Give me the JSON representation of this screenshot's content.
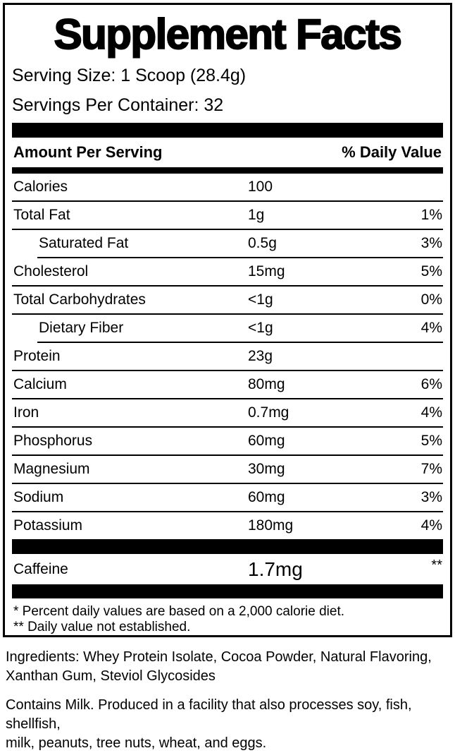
{
  "colors": {
    "ink": "#000000",
    "paper": "#ffffff"
  },
  "label": {
    "title": "Supplement Facts",
    "serving_size": "Serving Size: 1 Scoop (28.4g)",
    "servings_per_container": "Servings Per Container: 32",
    "header": {
      "left": "Amount Per Serving",
      "right": "% Daily Value"
    },
    "rows": [
      {
        "name": "Calories",
        "amount": "100",
        "dv": "",
        "indent": false,
        "sep": "full"
      },
      {
        "name": "Total Fat",
        "amount": "1g",
        "dv": "1%",
        "indent": false,
        "sep": "full"
      },
      {
        "name": "Saturated Fat",
        "amount": "0.5g",
        "dv": "3%",
        "indent": true,
        "sep": "indent"
      },
      {
        "name": "Cholesterol",
        "amount": "15mg",
        "dv": "5%",
        "indent": false,
        "sep": "full"
      },
      {
        "name": "Total Carbohydrates",
        "amount": "<1g",
        "dv": "0%",
        "indent": false,
        "sep": "full"
      },
      {
        "name": "Dietary Fiber",
        "amount": "<1g",
        "dv": "4%",
        "indent": true,
        "sep": "indent"
      },
      {
        "name": "Protein",
        "amount": "23g",
        "dv": "",
        "indent": false,
        "sep": "full"
      },
      {
        "name": "Calcium",
        "amount": "80mg",
        "dv": "6%",
        "indent": false,
        "sep": "full"
      },
      {
        "name": "Iron",
        "amount": "0.7mg",
        "dv": "4%",
        "indent": false,
        "sep": "full"
      },
      {
        "name": "Phosphorus",
        "amount": "60mg",
        "dv": "5%",
        "indent": false,
        "sep": "full"
      },
      {
        "name": "Magnesium",
        "amount": "30mg",
        "dv": "7%",
        "indent": false,
        "sep": "full"
      },
      {
        "name": "Sodium",
        "amount": "60mg",
        "dv": "3%",
        "indent": false,
        "sep": "full"
      },
      {
        "name": "Potassium",
        "amount": "180mg",
        "dv": "4%",
        "indent": false,
        "sep": "none"
      }
    ],
    "caffeine": {
      "name": "Caffeine",
      "amount": "1.7mg",
      "dv": "**"
    },
    "footnotes": [
      "* Percent daily values are based on a 2,000 calorie diet.",
      "** Daily value not established."
    ]
  },
  "below": {
    "ingredients_lines": [
      "Ingredients: Whey Protein Isolate, Cocoa Powder, Natural Flavoring,",
      "Xanthan Gum, Steviol Glycosides"
    ],
    "allergen_lines": [
      "Contains Milk. Produced in a facility that also processes soy, fish, shellfish,",
      "milk, peanuts, tree nuts, wheat, and eggs."
    ]
  }
}
